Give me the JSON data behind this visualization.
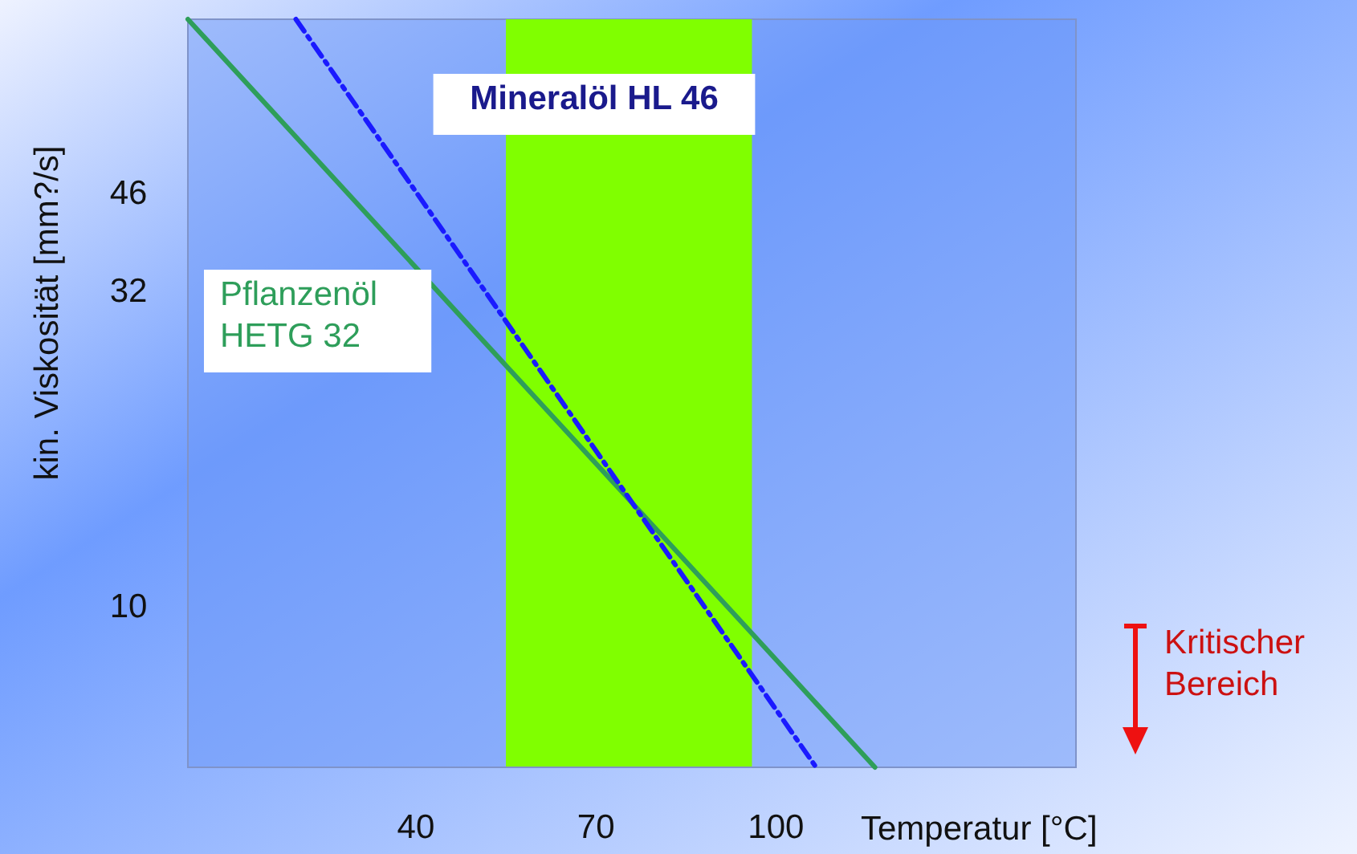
{
  "chart_data": {
    "type": "line",
    "xlabel": "Temperatur [°C]",
    "ylabel": "kin. Viskosität [mm?/s]",
    "log": "y",
    "xlim": [
      2,
      150
    ],
    "ylim": [
      5.5,
      87
    ],
    "xticks": [
      40,
      70,
      100
    ],
    "yticks": [
      10,
      32,
      46
    ],
    "series": [
      {
        "name": "Pflanzenöl HETG 32",
        "color": "#2e9e5a",
        "x": [
          2,
          116.5
        ],
        "values": [
          87,
          5.5
        ],
        "line_style": "solid"
      },
      {
        "name": "Mineralöl HL 46",
        "color": "#1a1aff",
        "x": [
          20,
          106.7
        ],
        "values": [
          87,
          5.5
        ],
        "line_style": "dashed"
      }
    ],
    "bands": [
      {
        "axis": "x",
        "from": 55,
        "to": 96,
        "color": "#80ff00"
      }
    ],
    "annotations": [
      "Kritischer Bereich"
    ],
    "grid": false
  }
}
